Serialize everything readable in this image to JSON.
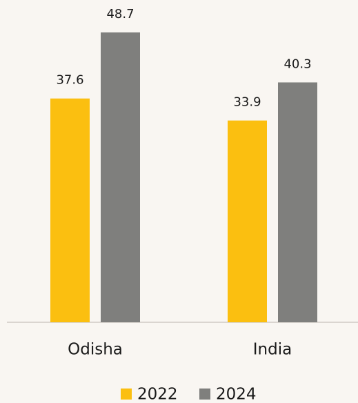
{
  "chart_data": {
    "type": "bar",
    "categories": [
      "Odisha",
      "India"
    ],
    "series": [
      {
        "name": "2022",
        "color": "#fbbf10",
        "values": [
          37.6,
          33.9
        ]
      },
      {
        "name": "2024",
        "color": "#7f7f7d",
        "values": [
          48.7,
          40.3
        ]
      }
    ]
  }
}
